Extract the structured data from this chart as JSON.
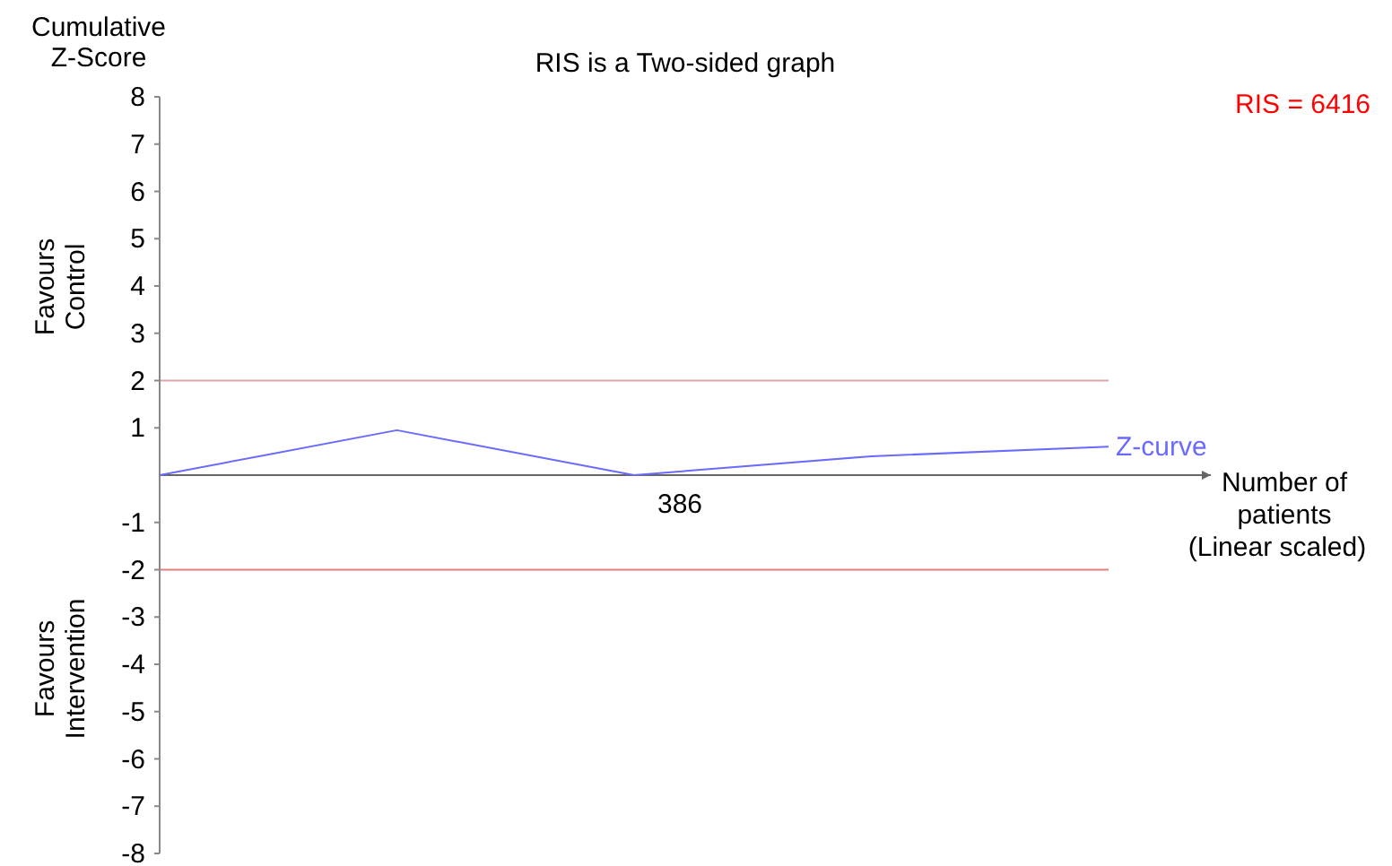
{
  "chart_data": {
    "type": "line",
    "title": "RIS is a Two-sided graph",
    "xlabel": "Number of patients (Linear scaled)",
    "ylabel": "Cumulative Z-Score",
    "annotations": [
      "RIS = 6416",
      "Favours Control",
      "Favours Intervention",
      "386"
    ],
    "categories": [
      null,
      null,
      null,
      null,
      null
    ],
    "series": [
      {
        "name": "Z-curve",
        "color": "#6a6aff",
        "values": [
          0,
          0.95,
          0,
          0.4,
          0.6
        ]
      }
    ],
    "ylim": [
      -8,
      8
    ],
    "yticks": [
      -8,
      -7,
      -6,
      -5,
      -4,
      -3,
      -2,
      -1,
      1,
      2,
      3,
      4,
      5,
      6,
      7,
      8
    ],
    "ref_lines": [
      {
        "axis": "y",
        "value": 2,
        "color": "#d8a8a8"
      },
      {
        "axis": "y",
        "value": -2,
        "color": "#e08080"
      }
    ],
    "grid": false
  }
}
